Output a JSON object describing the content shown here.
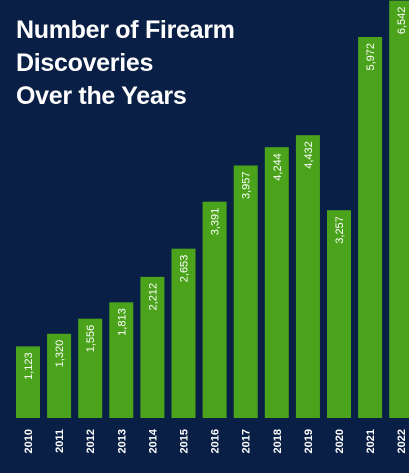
{
  "title_lines": [
    "Number of Firearm",
    "Discoveries",
    "Over the Years"
  ],
  "colors": {
    "background": "#0a1f45",
    "bar": "#4aa31a",
    "bar_highlight": "#5cb82a",
    "label_text": "#ffffff",
    "axis_text": "#ffffff"
  },
  "chart_data": {
    "type": "bar",
    "title": "Number of Firearm Discoveries Over the Years",
    "xlabel": "",
    "ylabel": "",
    "categories": [
      "2010",
      "2011",
      "2012",
      "2013",
      "2014",
      "2015",
      "2016",
      "2017",
      "2018",
      "2019",
      "2020",
      "2021",
      "2022"
    ],
    "values": [
      1123,
      1320,
      1556,
      1813,
      2212,
      2653,
      3391,
      3957,
      4244,
      4432,
      3257,
      5972,
      6542
    ],
    "value_labels": [
      "1,123",
      "1,320",
      "1,556",
      "1,813",
      "2,212",
      "2,653",
      "3,391",
      "3,957",
      "4,244",
      "4,432",
      "3,257",
      "5,972",
      "6,542"
    ],
    "orientation": "vertical",
    "data_labels": "inside-top-rotated",
    "grid": false,
    "legend": "none"
  }
}
